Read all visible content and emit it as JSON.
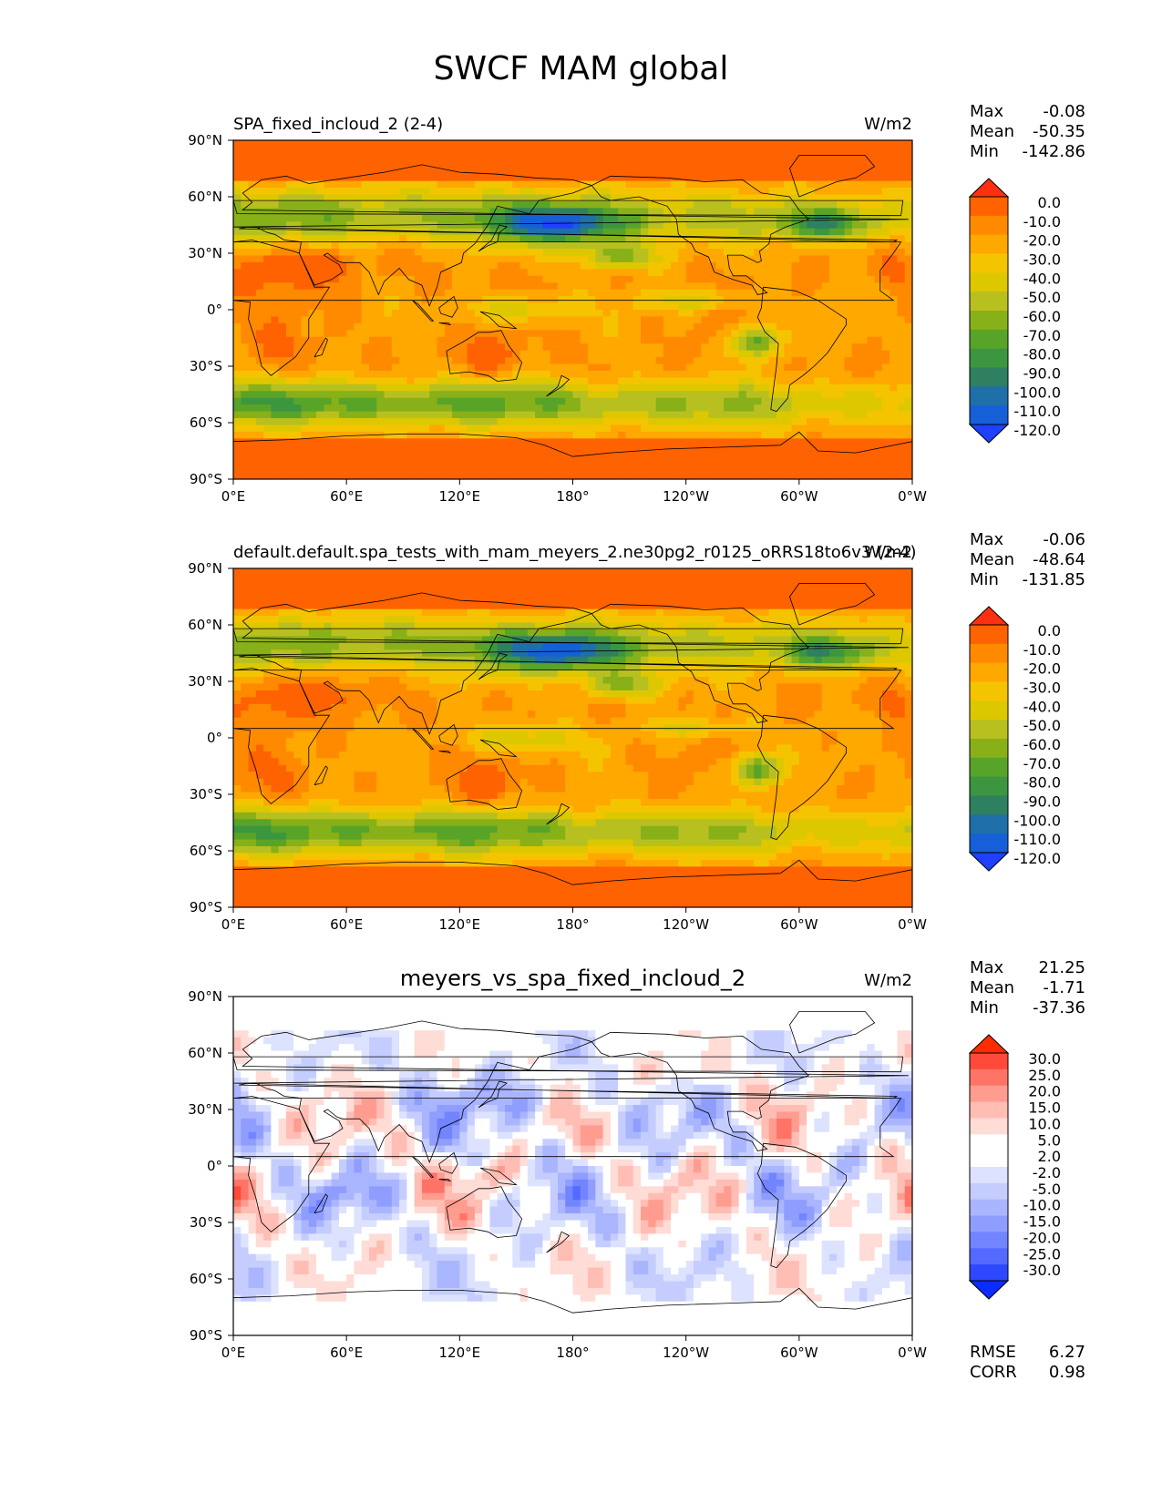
{
  "title": "SWCF MAM global",
  "axes": {
    "lat_ticks": [
      "90°N",
      "60°N",
      "30°N",
      "0°",
      "30°S",
      "60°S",
      "90°S"
    ],
    "lon_ticks": [
      "0°E",
      "60°E",
      "120°E",
      "180°",
      "120°W",
      "60°W",
      "0°W"
    ]
  },
  "colors": {
    "abs_levels": [
      "#ff3010",
      "#ff6200",
      "#ff8a00",
      "#ffa800",
      "#f5c400",
      "#ddc800",
      "#b8c020",
      "#88b018",
      "#58a428",
      "#3c9640",
      "#2e8060",
      "#1f6fa8",
      "#1560d8",
      "#1e40ff"
    ],
    "diff_levels": [
      "#ff2c00",
      "#ff4a3a",
      "#ff7466",
      "#ff9c90",
      "#ffbdb4",
      "#ffdcd6",
      "#ffffff",
      "#ffffff",
      "#dde2ff",
      "#c5cdff",
      "#aab5ff",
      "#8f9dff",
      "#7284ff",
      "#5469ff",
      "#2e48ff",
      "#0a2cff"
    ],
    "land": "#000000"
  },
  "chart_data": [
    {
      "type": "heatmap",
      "panel": "test",
      "title": "SPA_fixed_incloud_2 (2-4)",
      "units": "W/m2",
      "stats": {
        "max": "-0.08",
        "mean": "-50.35",
        "min": "-142.86"
      },
      "stat_labels": {
        "max": "Max",
        "mean": "Mean",
        "min": "Min"
      },
      "colorbar_levels": [
        "0.0",
        "-10.0",
        "-20.0",
        "-30.0",
        "-40.0",
        "-50.0",
        "-60.0",
        "-70.0",
        "-80.0",
        "-90.0",
        "-100.0",
        "-110.0",
        "-120.0"
      ],
      "extent": {
        "lon": [
          0,
          360
        ],
        "lat": [
          -90,
          90
        ]
      }
    },
    {
      "type": "heatmap",
      "panel": "reference",
      "title": "default.default.spa_tests_with_mam_meyers_2.ne30pg2_r0125_oRRS18to6v3 (2-4)",
      "units": "W/m2",
      "stats": {
        "max": "-0.06",
        "mean": "-48.64",
        "min": "-131.85"
      },
      "stat_labels": {
        "max": "Max",
        "mean": "Mean",
        "min": "Min"
      },
      "colorbar_levels": [
        "0.0",
        "-10.0",
        "-20.0",
        "-30.0",
        "-40.0",
        "-50.0",
        "-60.0",
        "-70.0",
        "-80.0",
        "-90.0",
        "-100.0",
        "-110.0",
        "-120.0"
      ],
      "extent": {
        "lon": [
          0,
          360
        ],
        "lat": [
          -90,
          90
        ]
      }
    },
    {
      "type": "heatmap",
      "panel": "difference",
      "title": "meyers_vs_spa_fixed_incloud_2",
      "units": "W/m2",
      "stats": {
        "max": "21.25",
        "mean": "-1.71",
        "min": "-37.36"
      },
      "stat_labels": {
        "max": "Max",
        "mean": "Mean",
        "min": "Min"
      },
      "colorbar_levels": [
        "30.0",
        "25.0",
        "20.0",
        "15.0",
        "10.0",
        "5.0",
        "2.0",
        "-2.0",
        "-5.0",
        "-10.0",
        "-15.0",
        "-20.0",
        "-25.0",
        "-30.0"
      ],
      "metrics": {
        "rmse": "6.27",
        "corr": "0.98"
      },
      "metric_labels": {
        "rmse": "RMSE",
        "corr": "CORR"
      },
      "extent": {
        "lon": [
          0,
          360
        ],
        "lat": [
          -90,
          90
        ]
      }
    }
  ]
}
